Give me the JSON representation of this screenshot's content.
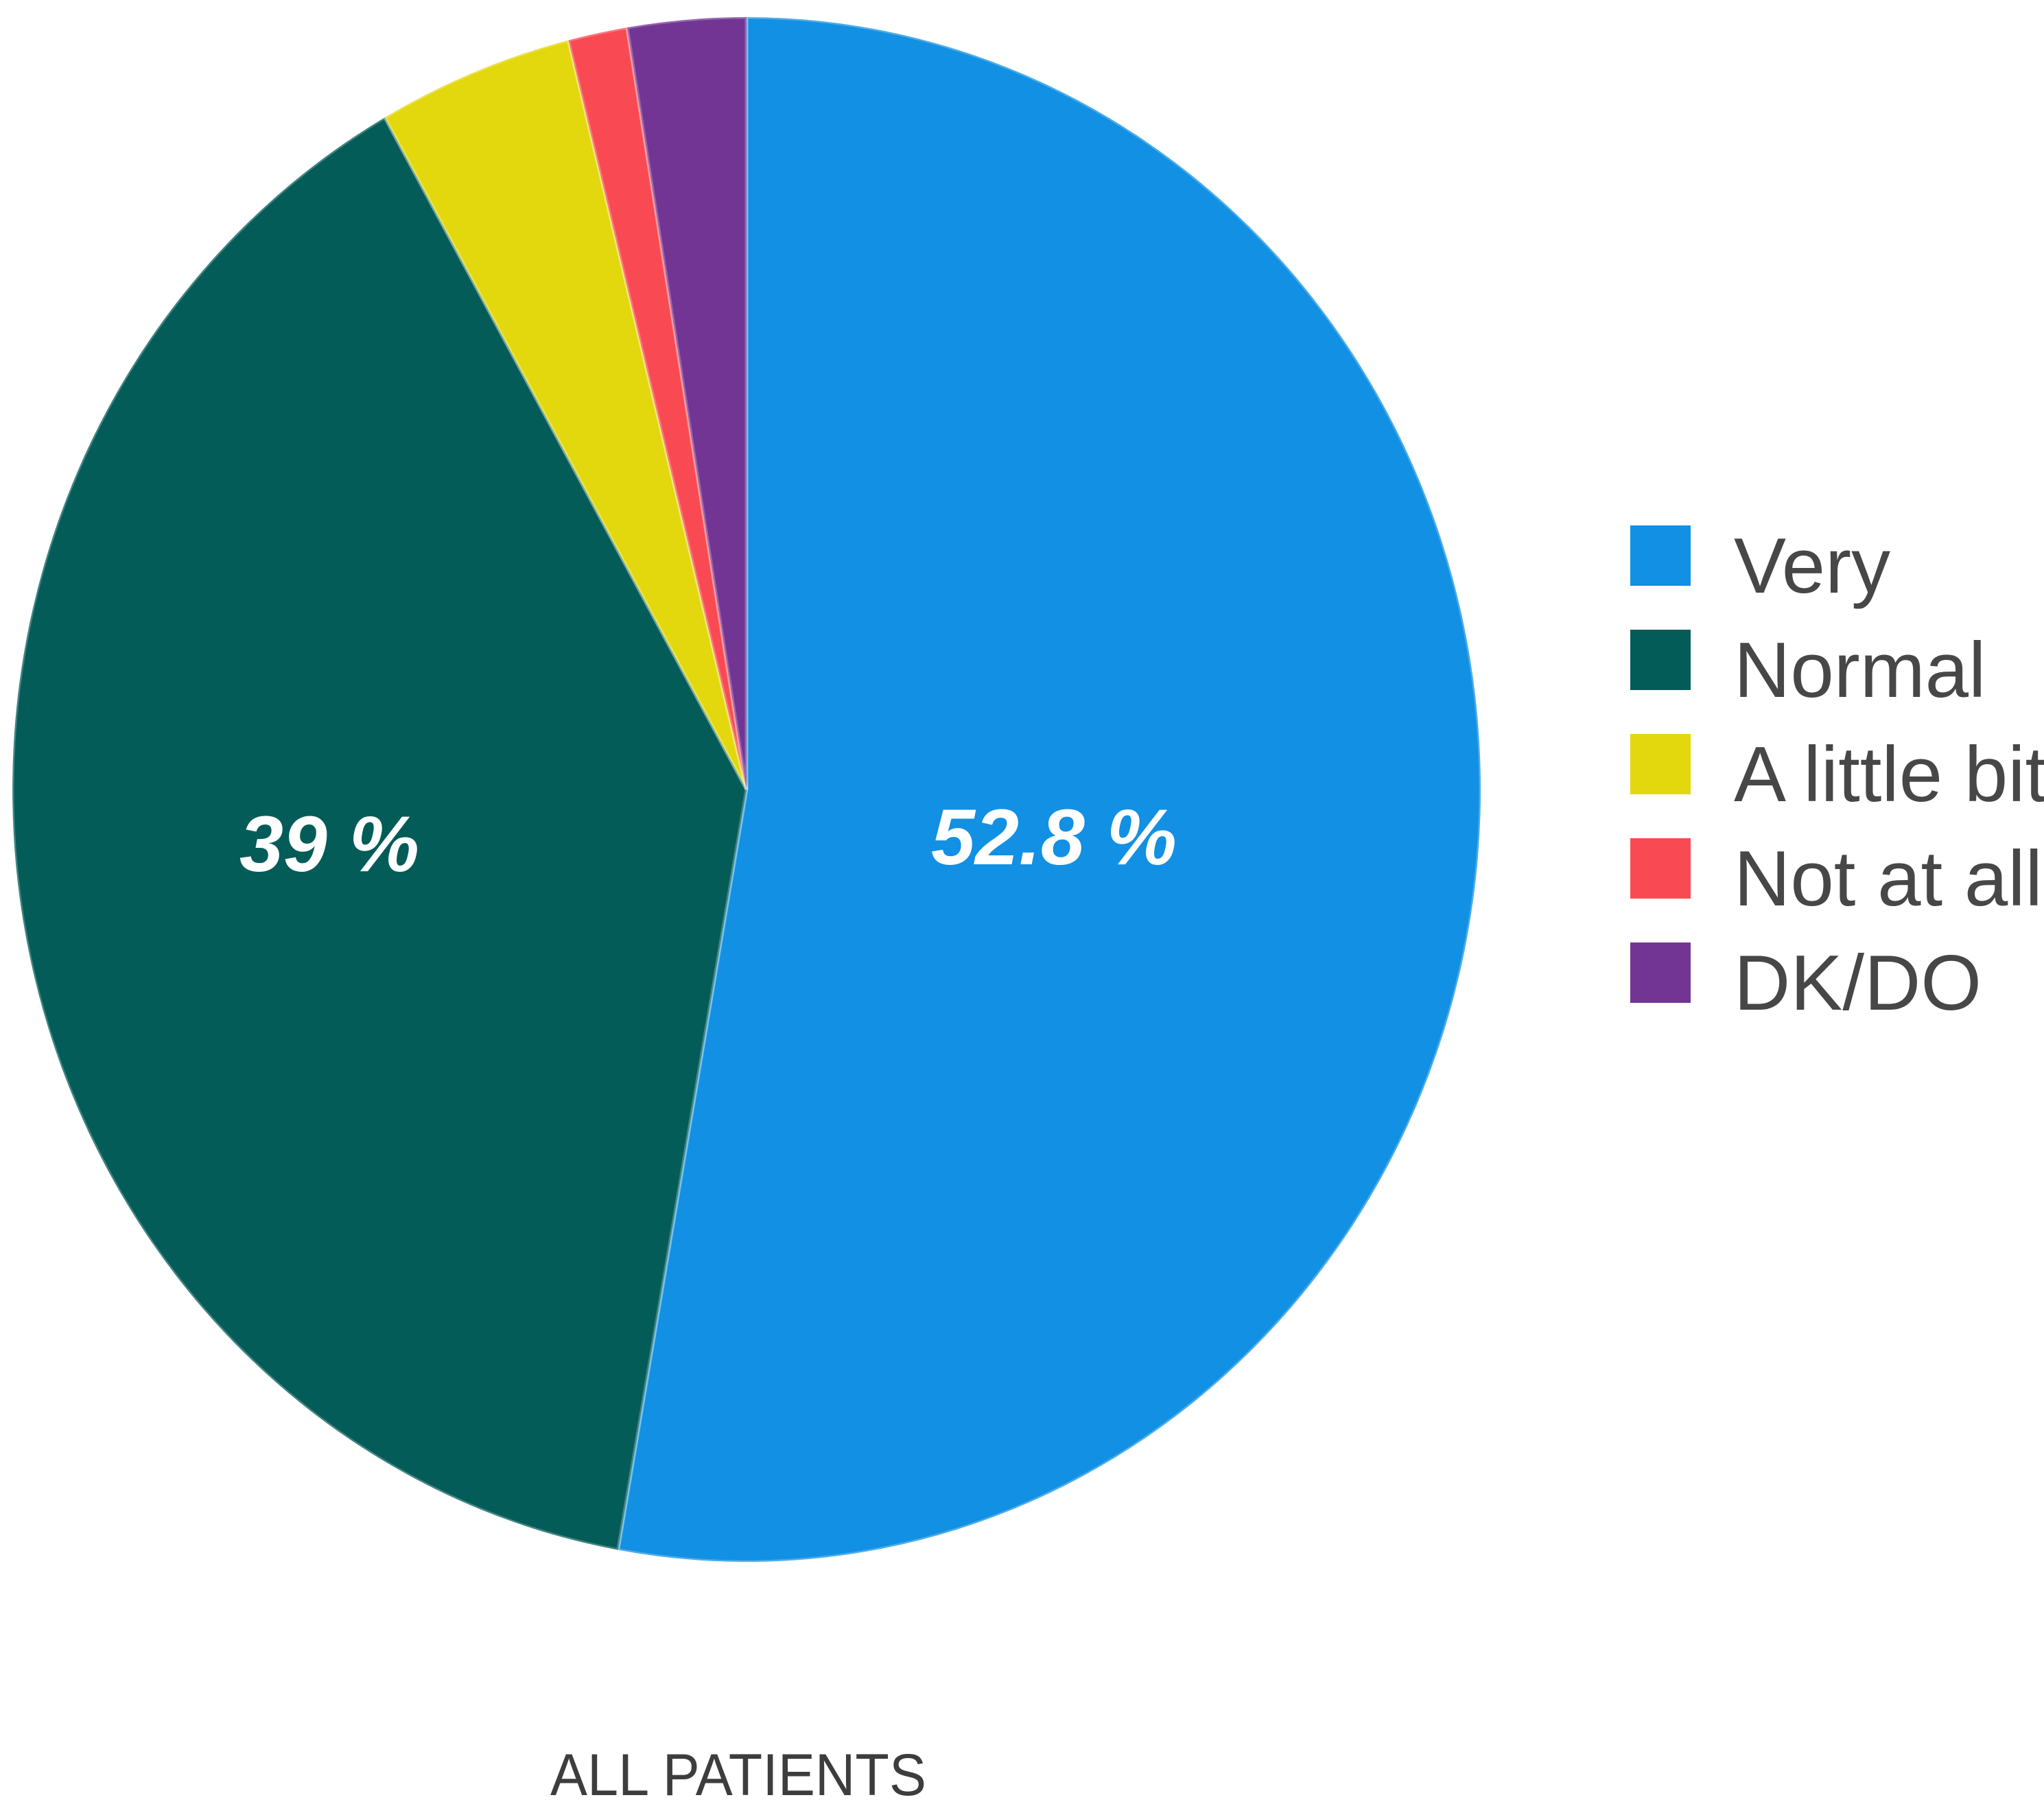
{
  "chart_data": {
    "type": "pie",
    "title": "",
    "caption": "ALL PATIENTS",
    "legend_position": "right",
    "direction": "clockwise",
    "start_angle_deg": 0,
    "grid": false,
    "background": "#FFFFFF",
    "data_label_color": "#FFFFFF",
    "legend_text_color": "#474747",
    "caption_color": "#3D3D3D",
    "slices": [
      {
        "name": "Very",
        "value": 52.8,
        "color": "#1290E3",
        "data_label": "52.8 %"
      },
      {
        "name": "Normal",
        "value": 39,
        "color": "#045C59",
        "data_label": "39 %"
      },
      {
        "name": "A little bit",
        "value": 4.3,
        "color": "#E3D70D",
        "data_label": ""
      },
      {
        "name": "Not at all",
        "value": 1.3,
        "color": "#F94A53",
        "data_label": ""
      },
      {
        "name": "DK/DO",
        "value": 2.6,
        "color": "#723594",
        "data_label": ""
      }
    ]
  }
}
